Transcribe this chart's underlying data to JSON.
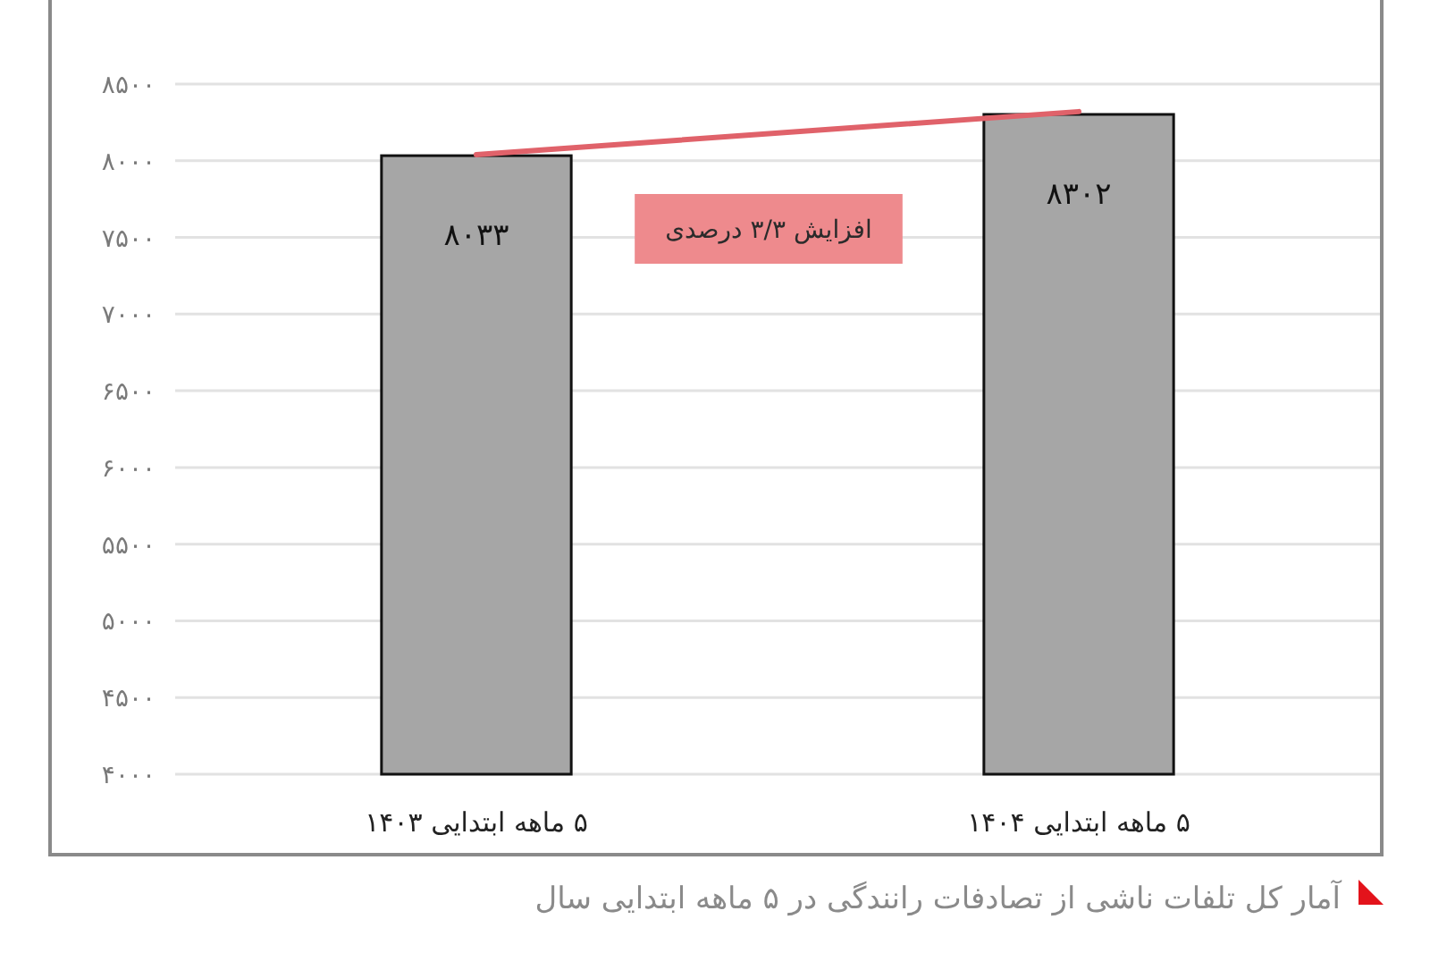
{
  "chart_data": {
    "type": "bar",
    "title": "آمار کل تلفات ناشی از تصادفات رانندگی در ۵ ماهه ابتدایی سال",
    "categories": [
      "۵ ماهه ابتدایی ۱۴۰۳",
      "۵ ماهه ابتدایی ۱۴۰۴"
    ],
    "series": [
      {
        "color": "#a6a6a6",
        "values": [
          8033,
          8302
        ],
        "value_labels": [
          "۸۰۳۳",
          "۸۳۰۲"
        ]
      },
      {
        "type": "line",
        "color": "#e0626a",
        "values": [
          8040,
          8320
        ]
      }
    ],
    "ylim": [
      4000,
      8500
    ],
    "yticks": [
      {
        "value": 4000,
        "label": "۴۰۰۰"
      },
      {
        "value": 4500,
        "label": "۴۵۰۰"
      },
      {
        "value": 5000,
        "label": "۵۰۰۰"
      },
      {
        "value": 5500,
        "label": "۵۵۰۰"
      },
      {
        "value": 6000,
        "label": "۶۰۰۰"
      },
      {
        "value": 6500,
        "label": "۶۵۰۰"
      },
      {
        "value": 7000,
        "label": "۷۰۰۰"
      },
      {
        "value": 7500,
        "label": "۷۵۰۰"
      },
      {
        "value": 8000,
        "label": "۸۰۰۰"
      },
      {
        "value": 8500,
        "label": "۸۵۰۰"
      }
    ],
    "grid": "y",
    "annotations": [
      "افزایش ۳/۳ درصدی"
    ]
  }
}
